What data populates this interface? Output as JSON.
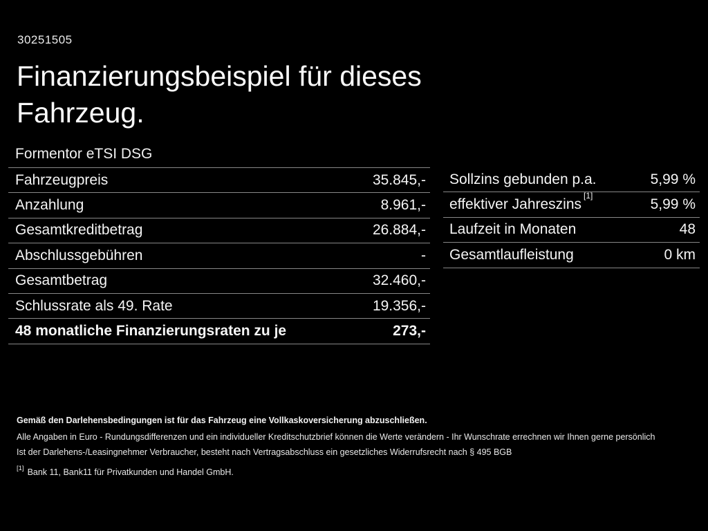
{
  "doc_id": "30251505",
  "title": "Finanzierungsbeispiel für dieses Fahrzeug.",
  "vehicle_model": "Formentor eTSI DSG",
  "tables": {
    "left": {
      "rows": [
        {
          "label": "Fahrzeugpreis",
          "value": "35.845,-"
        },
        {
          "label": "Anzahlung",
          "value": "8.961,-"
        },
        {
          "label": "Gesamtkreditbetrag",
          "value": "26.884,-"
        },
        {
          "label": "Abschlussgebühren",
          "value": "-"
        },
        {
          "label": "Gesamtbetrag",
          "value": "32.460,-"
        },
        {
          "label": "Schlussrate als 49. Rate",
          "value": "19.356,-"
        },
        {
          "label": "48 monatliche Finanzierungsraten zu je",
          "value": "273,-"
        }
      ]
    },
    "right": {
      "rows": [
        {
          "label": "Sollzins gebunden p.a.",
          "value": "5,99 %"
        },
        {
          "label": "effektiver Jahreszins",
          "sup": "[1]",
          "value": "5,99 %"
        },
        {
          "label": "Laufzeit in Monaten",
          "value": "48"
        },
        {
          "label": "Gesamtlaufleistung",
          "value": "0 km"
        }
      ]
    }
  },
  "footer": {
    "line1": "Gemäß den Darlehensbedingungen ist für das Fahrzeug eine Vollkaskoversicherung abzuschließen.",
    "line2": "Alle Angaben in Euro - Rundungsdifferenzen und ein individueller Kreditschutzbrief können die Werte verändern - Ihr Wunschrate errechnen wir Ihnen gerne persönlich",
    "line3": "Ist der Darlehens-/Leasingnehmer Verbraucher, besteht nach Vertragsabschluss ein gesetzliches Widerrufsrecht nach § 495 BGB",
    "footnote_marker": "[1]",
    "footnote_text": "Bank 11, Bank11 für Privatkunden und Handel GmbH."
  },
  "colors": {
    "background": "#000000",
    "text": "#f5f5f5",
    "divider": "#888888"
  }
}
